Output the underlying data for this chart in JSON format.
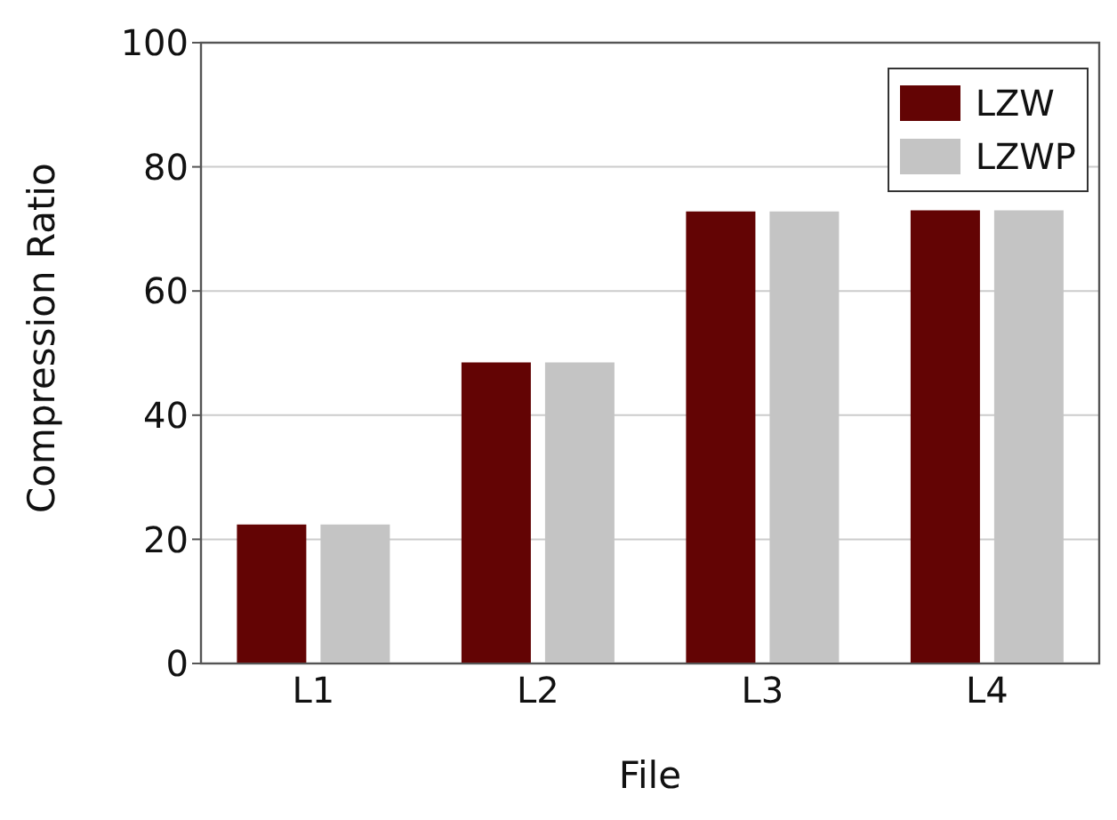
{
  "chart_data": {
    "type": "bar",
    "xlabel": "File",
    "ylabel": "Compression Ratio",
    "categories": [
      "L1",
      "L2",
      "L3",
      "L4"
    ],
    "series": [
      {
        "name": "LZW",
        "color": "#630404",
        "values": [
          22.4,
          48.5,
          72.8,
          73.0
        ]
      },
      {
        "name": "LZWP",
        "color": "#c4c4c4",
        "values": [
          22.4,
          48.5,
          72.8,
          73.0
        ]
      }
    ],
    "ylim": [
      0,
      100
    ],
    "yticks": [
      0,
      20,
      40,
      60,
      80,
      100
    ],
    "grid": "y",
    "legend": "top right"
  }
}
